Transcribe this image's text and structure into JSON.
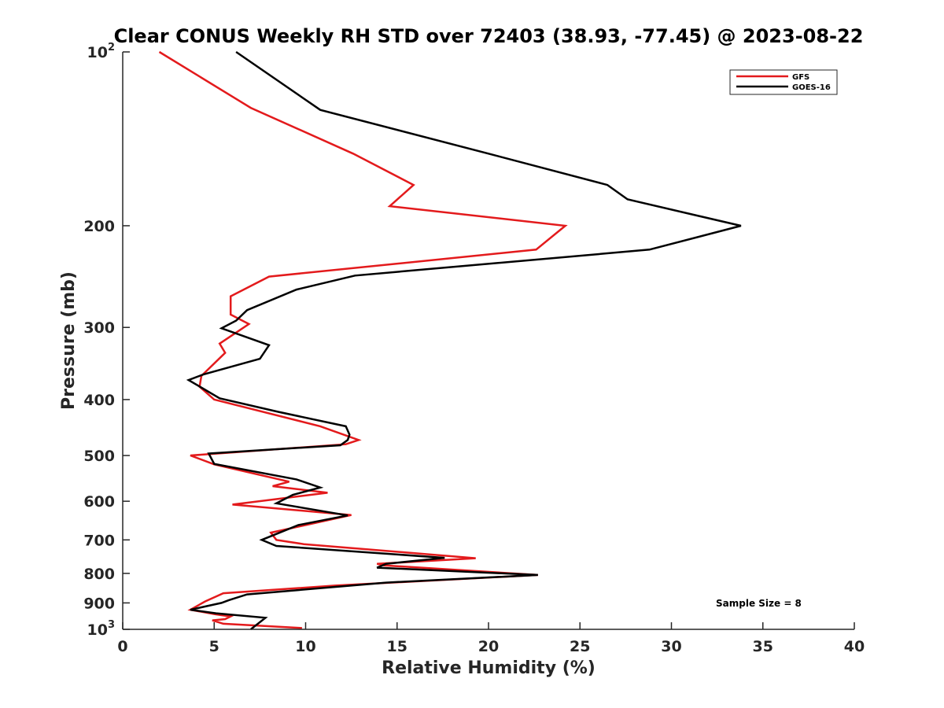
{
  "chart_data": {
    "type": "line",
    "title": "Clear CONUS Weekly RH STD over 72403 (38.93, -77.45) @ 2023-08-22",
    "xlabel": "Relative Humidity (%)",
    "ylabel": "Pressure (mb)",
    "xlim": [
      0,
      40
    ],
    "ylim": [
      100,
      1000
    ],
    "y_scale": "log",
    "y_reversed": true,
    "x_ticks": [
      "0",
      "5",
      "10",
      "15",
      "20",
      "25",
      "30",
      "35",
      "40"
    ],
    "y_ticks": [
      {
        "value": 100,
        "base": "10",
        "sup": "2"
      },
      {
        "value": 200,
        "base": "200",
        "sup": ""
      },
      {
        "value": 300,
        "base": "300",
        "sup": ""
      },
      {
        "value": 400,
        "base": "400",
        "sup": ""
      },
      {
        "value": 500,
        "base": "500",
        "sup": ""
      },
      {
        "value": 600,
        "base": "600",
        "sup": ""
      },
      {
        "value": 700,
        "base": "700",
        "sup": ""
      },
      {
        "value": 800,
        "base": "800",
        "sup": ""
      },
      {
        "value": 900,
        "base": "900",
        "sup": ""
      },
      {
        "value": 1000,
        "base": "10",
        "sup": "3"
      }
    ],
    "grid": false,
    "legend_position": "top-right",
    "series": [
      {
        "name": "GFS",
        "color": "#e31a1c",
        "points": [
          [
            2.0,
            100
          ],
          [
            7.0,
            125
          ],
          [
            12.6,
            150
          ],
          [
            15.9,
            170
          ],
          [
            14.6,
            185
          ],
          [
            24.2,
            200
          ],
          [
            22.6,
            220
          ],
          [
            8.0,
            245
          ],
          [
            5.9,
            265
          ],
          [
            5.9,
            285
          ],
          [
            6.9,
            296
          ],
          [
            5.3,
            320
          ],
          [
            5.6,
            332
          ],
          [
            4.3,
            364
          ],
          [
            4.2,
            380
          ],
          [
            5.0,
            400
          ],
          [
            10.8,
            445
          ],
          [
            12.9,
            470
          ],
          [
            12.2,
            478
          ],
          [
            3.7,
            500
          ],
          [
            5.0,
            518
          ],
          [
            9.1,
            555
          ],
          [
            8.2,
            565
          ],
          [
            11.2,
            580
          ],
          [
            6.0,
            608
          ],
          [
            12.5,
            634
          ],
          [
            8.1,
            680
          ],
          [
            8.4,
            700
          ],
          [
            9.9,
            712
          ],
          [
            19.3,
            753
          ],
          [
            13.9,
            770
          ],
          [
            14.3,
            775
          ],
          [
            22.7,
            805
          ],
          [
            11.6,
            840
          ],
          [
            5.5,
            866
          ],
          [
            4.5,
            895
          ],
          [
            3.7,
            925
          ],
          [
            5.1,
            942
          ],
          [
            5.9,
            950
          ],
          [
            5.6,
            960
          ],
          [
            4.9,
            965
          ],
          [
            5.5,
            978
          ],
          [
            9.8,
            995
          ]
        ]
      },
      {
        "name": "GOES-16",
        "color": "#000000",
        "points": [
          [
            6.2,
            100
          ],
          [
            10.8,
            126
          ],
          [
            20.0,
            150
          ],
          [
            26.5,
            170
          ],
          [
            27.6,
            180
          ],
          [
            33.8,
            200
          ],
          [
            28.8,
            220
          ],
          [
            12.7,
            244
          ],
          [
            9.5,
            258
          ],
          [
            6.8,
            280
          ],
          [
            6.2,
            292
          ],
          [
            5.4,
            301
          ],
          [
            8.0,
            322
          ],
          [
            7.5,
            340
          ],
          [
            4.4,
            362
          ],
          [
            3.6,
            370
          ],
          [
            5.3,
            398
          ],
          [
            8.5,
            420
          ],
          [
            12.2,
            445
          ],
          [
            12.4,
            460
          ],
          [
            12.3,
            470
          ],
          [
            11.9,
            480
          ],
          [
            4.7,
            496
          ],
          [
            5.0,
            517
          ],
          [
            9.5,
            550
          ],
          [
            10.8,
            568
          ],
          [
            9.3,
            585
          ],
          [
            8.4,
            605
          ],
          [
            12.3,
            635
          ],
          [
            9.6,
            660
          ],
          [
            7.6,
            700
          ],
          [
            8.4,
            717
          ],
          [
            17.6,
            752
          ],
          [
            14.4,
            770
          ],
          [
            13.9,
            782
          ],
          [
            22.7,
            805
          ],
          [
            14.4,
            830
          ],
          [
            6.8,
            870
          ],
          [
            5.8,
            890
          ],
          [
            5.4,
            900
          ],
          [
            3.7,
            925
          ],
          [
            5.1,
            938
          ],
          [
            7.8,
            955
          ],
          [
            7.0,
            1000
          ]
        ]
      }
    ],
    "annotation": "Sample Size = 8"
  }
}
